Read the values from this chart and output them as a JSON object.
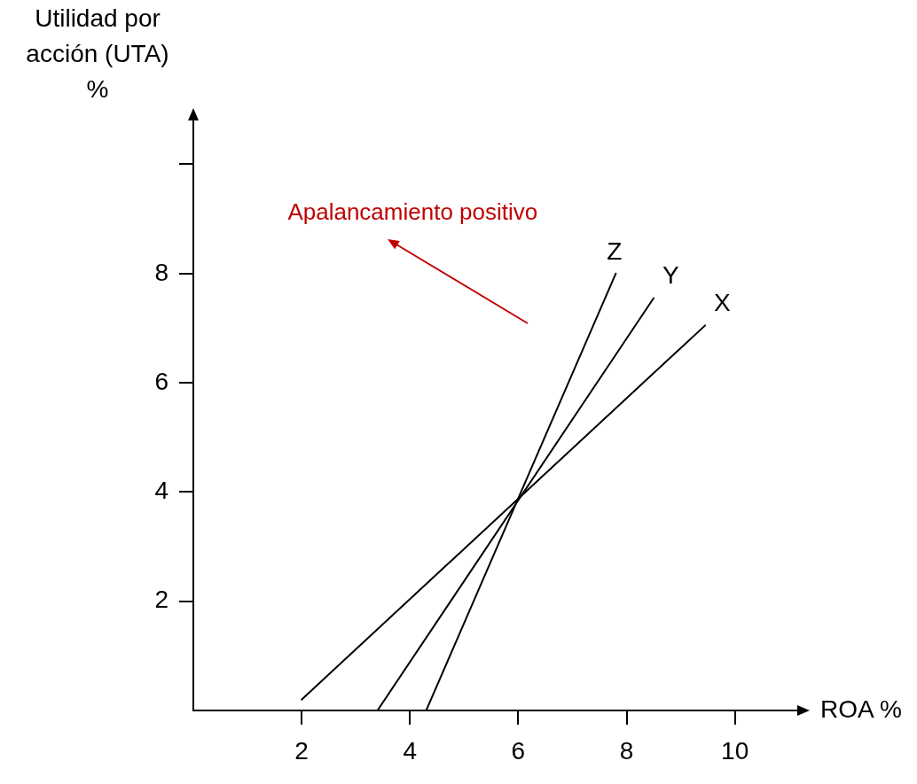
{
  "chart_data": {
    "type": "line",
    "xlabel": "ROA %",
    "ylabel": "Utilidad por acción (UTA) %",
    "annotations": [
      "Apalancamiento positivo"
    ],
    "series": [
      {
        "name": "X",
        "color": "#000000",
        "x": [
          2.0,
          9.45
        ],
        "values": [
          0.2,
          7.05
        ]
      },
      {
        "name": "Y",
        "color": "#000000",
        "x": [
          3.4,
          8.5
        ],
        "values": [
          0,
          7.55
        ]
      },
      {
        "name": "Z",
        "color": "#000000",
        "x": [
          4.3,
          7.8
        ],
        "values": [
          0,
          8.0
        ]
      }
    ],
    "xlim": [
      0,
      11.25
    ],
    "ylim": [
      0,
      10.9
    ],
    "xticks": [
      2,
      4,
      6,
      8,
      10
    ],
    "yticks": [
      2,
      4,
      6,
      8,
      {
        "value": 10,
        "label": null
      }
    ],
    "grid": false,
    "legend": false,
    "marker": "none",
    "line_style": "solid"
  }
}
